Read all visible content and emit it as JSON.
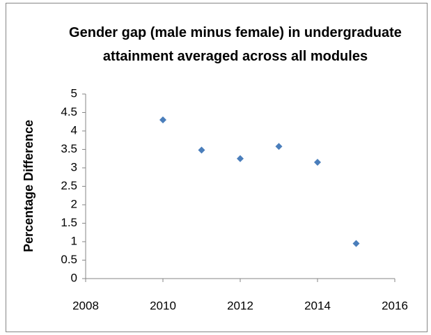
{
  "chart_data": {
    "type": "scatter",
    "title": "Gender gap (male minus female) in undergraduate attainment averaged across all modules",
    "y_label": "Percentage Difference",
    "series": [
      {
        "color": "#4a7ebb",
        "x": [
          2010,
          2011,
          2012,
          2013,
          2014,
          2015
        ],
        "values": [
          4.3,
          3.48,
          3.25,
          3.58,
          3.15,
          0.95
        ]
      }
    ],
    "xlim": [
      2008,
      2016
    ],
    "xticks": [
      2008,
      2010,
      2012,
      2014,
      2016
    ],
    "ylim": [
      0,
      5
    ],
    "yticks": [
      0,
      0.5,
      1,
      1.5,
      2,
      2.5,
      3,
      3.5,
      4,
      4.5,
      5
    ],
    "grid": false
  }
}
